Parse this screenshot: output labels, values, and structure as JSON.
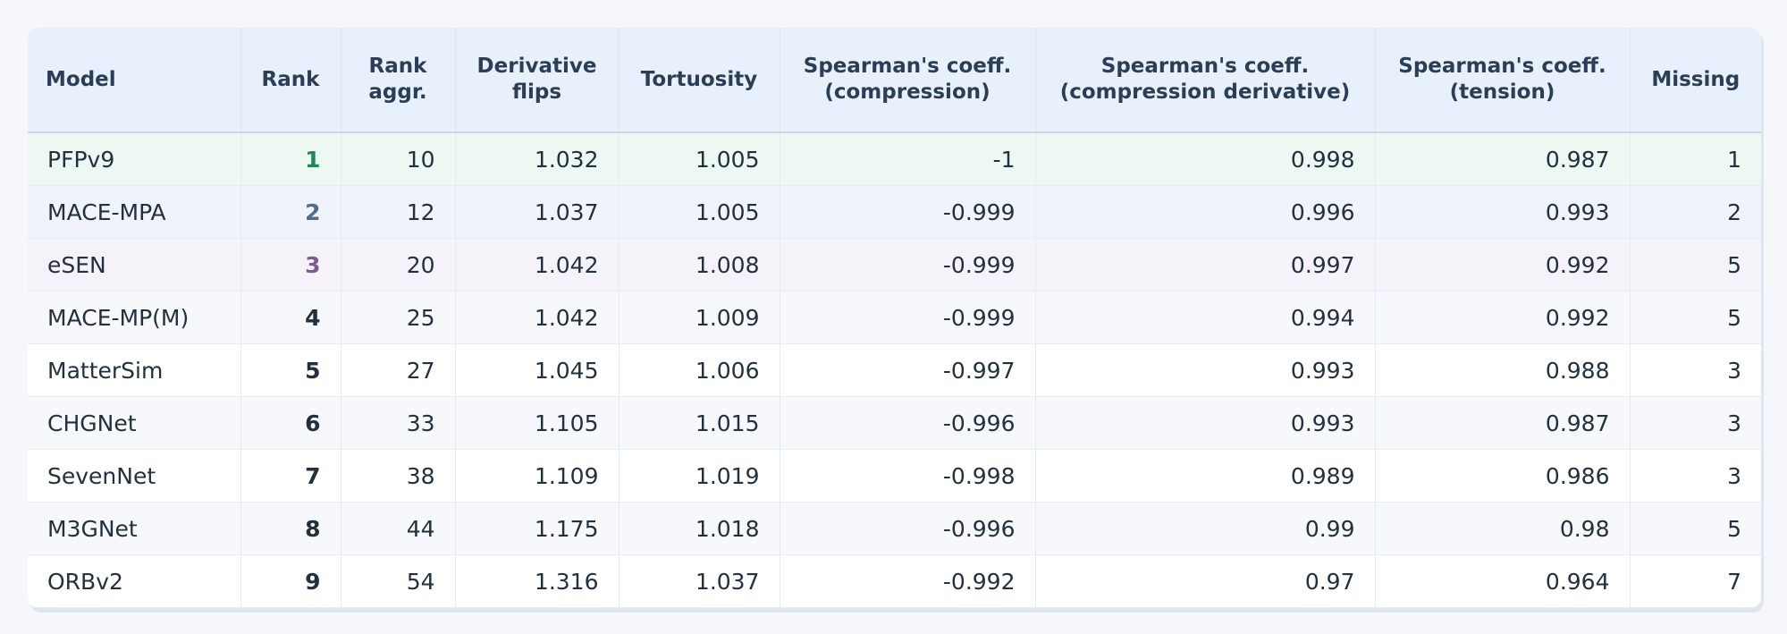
{
  "table": {
    "columns": [
      "Model",
      "Rank",
      "Rank\naggr.",
      "Derivative\nflips",
      "Tortuosity",
      "Spearman's coeff.\n(compression)",
      "Spearman's coeff.\n(compression derivative)",
      "Spearman's coeff.\n(tension)",
      "Missing"
    ],
    "rows": [
      [
        "PFPv9",
        1,
        10,
        1.032,
        1.005,
        -1,
        0.998,
        0.987,
        1
      ],
      [
        "MACE-MPA",
        2,
        12,
        1.037,
        1.005,
        -0.999,
        0.996,
        0.993,
        2
      ],
      [
        "eSEN",
        3,
        20,
        1.042,
        1.008,
        -0.999,
        0.997,
        0.992,
        5
      ],
      [
        "MACE-MP(M)",
        4,
        25,
        1.042,
        1.009,
        -0.999,
        0.994,
        0.992,
        5
      ],
      [
        "MatterSim",
        5,
        27,
        1.045,
        1.006,
        -0.997,
        0.993,
        0.988,
        3
      ],
      [
        "CHGNet",
        6,
        33,
        1.105,
        1.015,
        -0.996,
        0.993,
        0.987,
        3
      ],
      [
        "SevenNet",
        7,
        38,
        1.109,
        1.019,
        -0.998,
        0.989,
        0.986,
        3
      ],
      [
        "M3GNet",
        8,
        44,
        1.175,
        1.018,
        -0.996,
        0.99,
        0.98,
        5
      ],
      [
        "ORBv2",
        9,
        54,
        1.316,
        1.037,
        -0.992,
        0.97,
        0.964,
        7
      ]
    ]
  }
}
